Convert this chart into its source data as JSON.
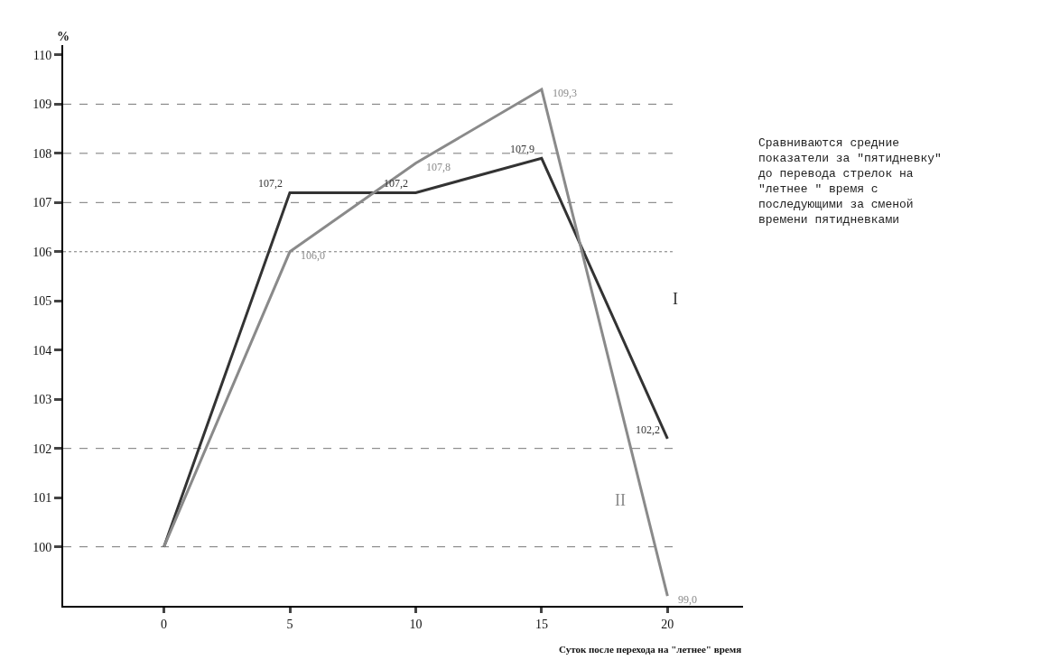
{
  "chart_data": {
    "type": "line",
    "ylabel": "%",
    "xlabel": "Суток после перехода на \"летнее\" время",
    "categories": [
      "0",
      "5",
      "10",
      "15",
      "20"
    ],
    "ylim": [
      98.8,
      110.2
    ],
    "yticks": [
      100,
      101,
      102,
      103,
      104,
      105,
      106,
      107,
      108,
      109,
      110
    ],
    "series": [
      {
        "name": "I",
        "color": "#333333",
        "values": [
          100,
          107.2,
          107.2,
          107.9,
          102.2
        ],
        "value_labels": [
          null,
          "107,2",
          "107,2",
          "107,9",
          "102,2"
        ]
      },
      {
        "name": "II",
        "color": "#8a8a8a",
        "values": [
          100,
          106.0,
          107.8,
          109.3,
          99.0
        ],
        "value_labels": [
          null,
          "106,0",
          "107,8",
          "109,3",
          "99,0"
        ]
      }
    ],
    "ref_lines": [
      {
        "axis": "y",
        "value": 100,
        "line_style": "dashed",
        "color": "#777777"
      },
      {
        "axis": "y",
        "value": 102,
        "line_style": "dashed",
        "color": "#777777"
      },
      {
        "axis": "y",
        "value": 106,
        "line_style": "dotted",
        "color": "#777777"
      },
      {
        "axis": "y",
        "value": 107,
        "line_style": "dashed",
        "color": "#777777"
      },
      {
        "axis": "y",
        "value": 108,
        "line_style": "dashed",
        "color": "#777777"
      },
      {
        "axis": "y",
        "value": 109,
        "line_style": "dashed",
        "color": "#777777"
      }
    ],
    "annotations": [
      "Сравниваются средние показатели за \"пятидневку\" до перевода стрелок на \"летнее \" время с последующими за сменой времени пятидневками"
    ],
    "grid": false,
    "legend": false,
    "marker": "none",
    "line_style": "solid"
  }
}
